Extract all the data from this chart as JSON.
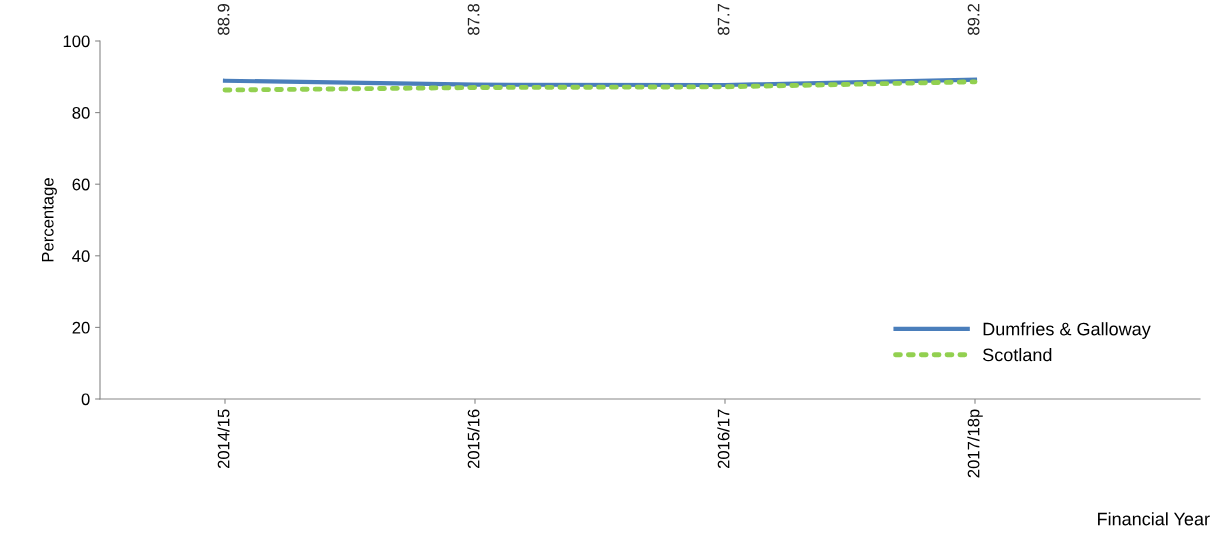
{
  "chart_data": {
    "type": "line",
    "xlabel": "Financial Year",
    "ylabel": "Percentage",
    "categories": [
      "2014/15",
      "2015/16",
      "2016/17",
      "2017/18p"
    ],
    "series": [
      {
        "name": "Dumfries & Galloway",
        "color": "#4a7ebb",
        "values": [
          88.9,
          87.8,
          87.7,
          89.2
        ],
        "line_style": "solid",
        "value_labels": [
          "88.9",
          "87.8",
          "87.7",
          "89.2"
        ]
      },
      {
        "name": "Scotland",
        "color": "#92d050",
        "values": [
          86.3,
          87.0,
          87.2,
          88.6
        ],
        "line_style": "dotted"
      }
    ],
    "ylim": [
      0,
      100
    ],
    "yticks": [
      0,
      20,
      40,
      60,
      80,
      100
    ],
    "grid": false,
    "legend": "bottom right",
    "marker": "none"
  }
}
